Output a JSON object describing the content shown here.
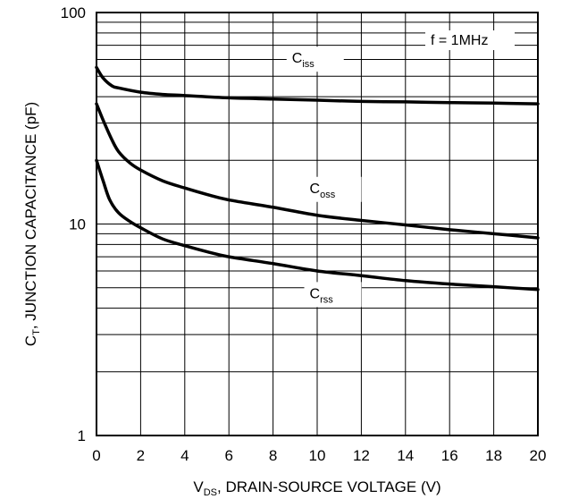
{
  "chart_data": {
    "type": "line",
    "title": "",
    "xlabel": "",
    "ylabel": "",
    "xlabel_parts": {
      "main": "V",
      "sub": "DS",
      "rest": ", DRAIN-SOURCE VOLTAGE (V)"
    },
    "ylabel_parts": {
      "main": "C",
      "sub": "T",
      "rest": ", JUNCTION CAPACITANCE (pF)"
    },
    "x_ticks": [
      "0",
      "2",
      "4",
      "6",
      "8",
      "10",
      "12",
      "14",
      "16",
      "18",
      "20"
    ],
    "y_ticks": [
      "1",
      "10",
      "100"
    ],
    "xlim": [
      0,
      20
    ],
    "ylim": [
      1,
      100
    ],
    "yscale": "log",
    "grid": true,
    "annotation": "f = 1MHz",
    "series": [
      {
        "name": "Ciss",
        "label_main": "C",
        "label_sub": "iss",
        "x": [
          0,
          0.3,
          0.7,
          1,
          2,
          3,
          4,
          6,
          8,
          10,
          12,
          14,
          16,
          18,
          20
        ],
        "values": [
          55,
          49,
          45,
          44,
          42,
          41,
          40.5,
          39.5,
          39,
          38.5,
          38,
          37.8,
          37.5,
          37.3,
          37
        ]
      },
      {
        "name": "Coss",
        "label_main": "C",
        "label_sub": "oss",
        "x": [
          0,
          0.3,
          0.7,
          1,
          1.5,
          2,
          3,
          4,
          5,
          6,
          8,
          10,
          12,
          14,
          16,
          18,
          20
        ],
        "values": [
          37,
          31,
          25,
          22,
          19.5,
          18,
          16,
          14.8,
          13.8,
          13,
          12,
          11,
          10.4,
          9.9,
          9.4,
          9,
          8.6
        ]
      },
      {
        "name": "Crss",
        "label_main": "C",
        "label_sub": "rss",
        "x": [
          0,
          0.3,
          0.6,
          1,
          1.5,
          2,
          3,
          4,
          5,
          6,
          8,
          10,
          12,
          14,
          16,
          18,
          20
        ],
        "values": [
          20,
          16,
          13,
          11.3,
          10.3,
          9.6,
          8.5,
          7.9,
          7.4,
          7,
          6.5,
          6,
          5.7,
          5.4,
          5.2,
          5.05,
          4.9
        ]
      }
    ]
  }
}
